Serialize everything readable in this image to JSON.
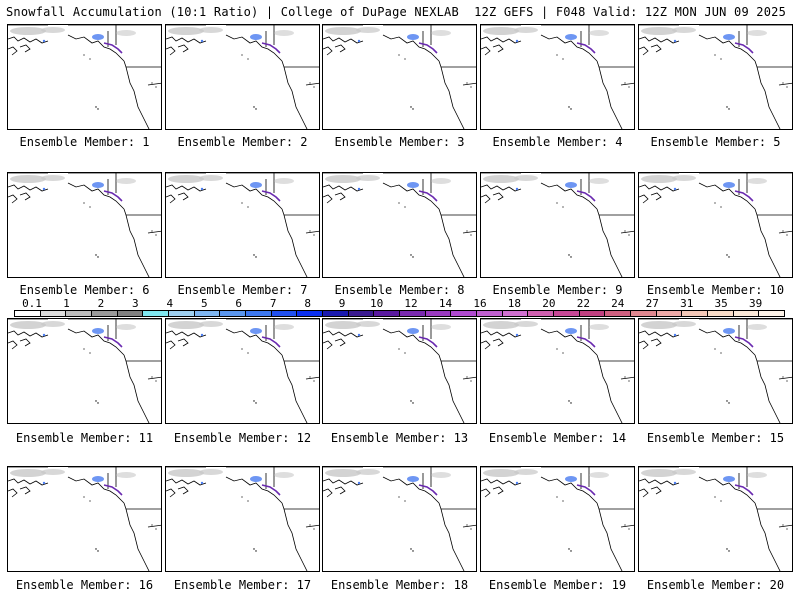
{
  "header": {
    "left": "Snowfall Accumulation (10:1 Ratio) | College of DuPage NEXLAB",
    "right": "12Z GEFS | F048 Valid: 12Z MON JUN 09 2025"
  },
  "members": [
    "Ensemble Member: 1",
    "Ensemble Member: 2",
    "Ensemble Member: 3",
    "Ensemble Member: 4",
    "Ensemble Member: 5",
    "Ensemble Member: 6",
    "Ensemble Member: 7",
    "Ensemble Member: 8",
    "Ensemble Member: 9",
    "Ensemble Member: 10",
    "Ensemble Member: 11",
    "Ensemble Member: 12",
    "Ensemble Member: 13",
    "Ensemble Member: 14",
    "Ensemble Member: 15",
    "Ensemble Member: 16",
    "Ensemble Member: 17",
    "Ensemble Member: 18",
    "Ensemble Member: 19",
    "Ensemble Member: 20"
  ],
  "colorbar": {
    "labels": [
      "0.1",
      "1",
      "2",
      "3",
      "4",
      "5",
      "6",
      "7",
      "8",
      "9",
      "10",
      "12",
      "14",
      "16",
      "18",
      "20",
      "22",
      "24",
      "27",
      "31",
      "35",
      "39"
    ],
    "colors": [
      "#ffffff",
      "#dcdcdc",
      "#bdbdbd",
      "#9a9a9a",
      "#808080",
      "#7fe7f0",
      "#9fd0f0",
      "#7fb6f0",
      "#5a96ee",
      "#3c78f0",
      "#2050f0",
      "#0a2ff0",
      "#1a1ab0",
      "#3a1a90",
      "#5a1aa0",
      "#7a2ab0",
      "#9a3ac0",
      "#b04ad0",
      "#c060d0",
      "#d070d0",
      "#d060b0",
      "#c84896",
      "#c04080",
      "#d06080",
      "#e08890",
      "#eeaaa8",
      "#f4c8b8",
      "#f8dcc8",
      "#fae8d8",
      "#fcf2e8"
    ]
  },
  "colors": {
    "land_line": "#000000",
    "snow_gray": "#c8c8c8",
    "snow_blue": "#4a7cf0",
    "snow_purple": "#6a2ab0"
  }
}
